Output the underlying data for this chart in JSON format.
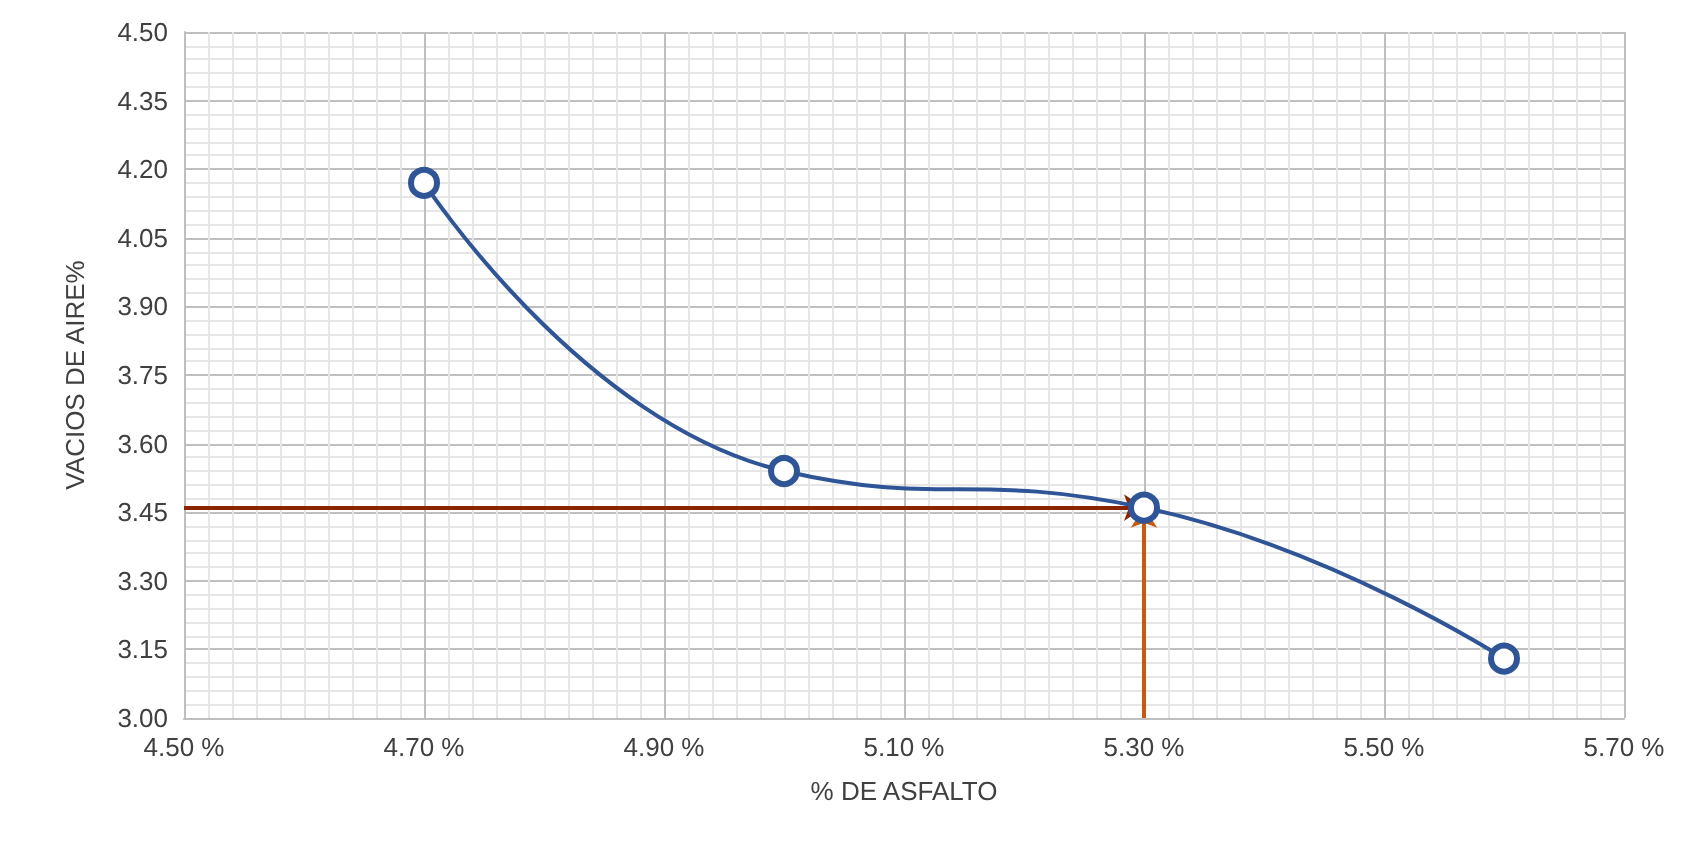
{
  "chart_data": {
    "type": "line",
    "xlabel": "% DE ASFALTO",
    "ylabel": "VACIOS DE AIRE%",
    "x": [
      4.7,
      5.0,
      5.3,
      5.6
    ],
    "series": [
      {
        "color": "#2f5597",
        "values": [
          4.17,
          3.54,
          3.46,
          3.13
        ]
      }
    ],
    "xlim": [
      4.5,
      5.7
    ],
    "xticks": [
      {
        "value": 4.5,
        "label": "4.50 %"
      },
      {
        "value": 4.7,
        "label": "4.70 %"
      },
      {
        "value": 4.9,
        "label": "4.90 %"
      },
      {
        "value": 5.1,
        "label": "5.10 %"
      },
      {
        "value": 5.3,
        "label": "5.30 %"
      },
      {
        "value": 5.5,
        "label": "5.50 %"
      },
      {
        "value": 5.7,
        "label": "5.70 %"
      }
    ],
    "ylim": [
      3.0,
      4.5
    ],
    "yticks": [
      {
        "value": 3.0,
        "label": "3.00"
      },
      {
        "value": 3.15,
        "label": "3.15"
      },
      {
        "value": 3.3,
        "label": "3.30"
      },
      {
        "value": 3.45,
        "label": "3.45"
      },
      {
        "value": 3.6,
        "label": "3.60"
      },
      {
        "value": 3.75,
        "label": "3.75"
      },
      {
        "value": 3.9,
        "label": "3.90"
      },
      {
        "value": 4.05,
        "label": "4.05"
      },
      {
        "value": 4.2,
        "label": "4.20"
      },
      {
        "value": 4.35,
        "label": "4.35"
      },
      {
        "value": 4.5,
        "label": "4.50"
      }
    ],
    "ref_lines": [
      {
        "axis": "y",
        "value": 3.46,
        "color": "#8b2500"
      },
      {
        "axis": "x",
        "value": 5.3,
        "color": "#c55a11"
      }
    ],
    "grid": true,
    "marker": "circle"
  }
}
